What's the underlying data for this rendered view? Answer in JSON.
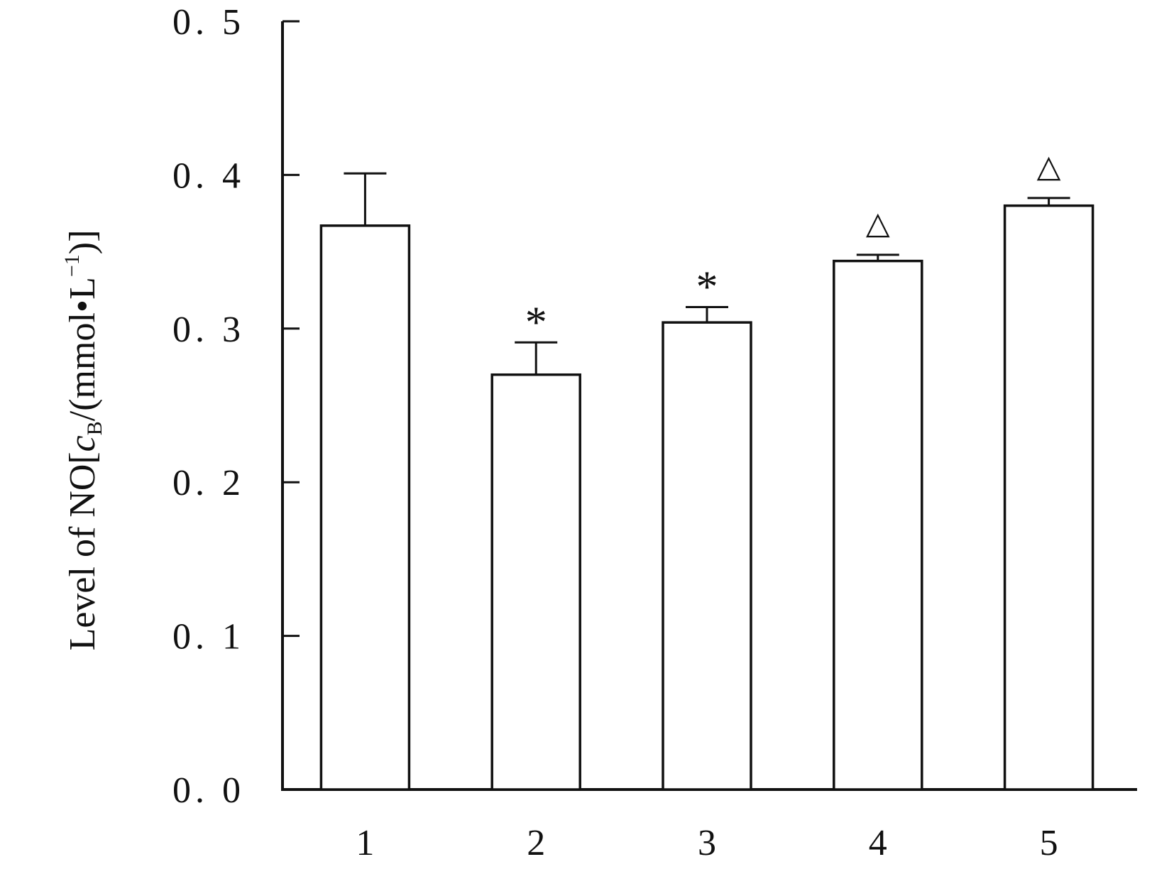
{
  "chart_data": {
    "type": "bar",
    "title": "",
    "xlabel": "",
    "ylabel": {
      "prefix": "Level of NO[",
      "symbol": "c",
      "subscript": "B",
      "middle": "/(mmol•L",
      "superscript": "−1",
      "suffix": ")]"
    },
    "ylim": [
      0,
      0.5
    ],
    "yticks": [
      {
        "value": 0.0,
        "label": "0. 0"
      },
      {
        "value": 0.1,
        "label": "0. 1"
      },
      {
        "value": 0.2,
        "label": "0. 2"
      },
      {
        "value": 0.3,
        "label": "0. 3"
      },
      {
        "value": 0.4,
        "label": "0. 4"
      },
      {
        "value": 0.5,
        "label": "0. 5"
      }
    ],
    "categories": [
      "1",
      "2",
      "3",
      "4",
      "5"
    ],
    "values": [
      0.367,
      0.27,
      0.304,
      0.344,
      0.38
    ],
    "errors": [
      0.034,
      0.021,
      0.01,
      0.004,
      0.005
    ],
    "annotations": [
      "",
      "*",
      "*",
      "△",
      "△"
    ],
    "grid": false,
    "bar_fill": "#ffffff",
    "bar_stroke": "#111111"
  }
}
